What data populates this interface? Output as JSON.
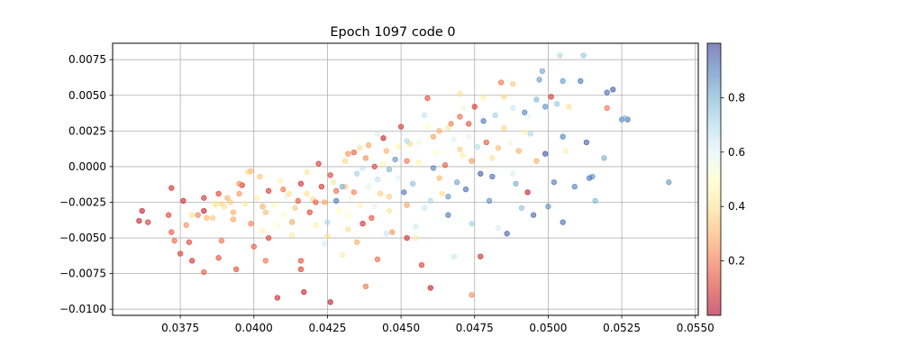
{
  "chart_data": {
    "type": "scatter",
    "title": "Epoch 1097 code 0",
    "xlabel": "",
    "ylabel": "",
    "xlim": [
      0.0352,
      0.0551
    ],
    "ylim": [
      -0.01043,
      0.00865
    ],
    "grid": true,
    "x_ticks": [
      0.0375,
      0.04,
      0.0425,
      0.045,
      0.0475,
      0.05,
      0.0525,
      0.055
    ],
    "x_tick_labels": [
      "0.0375",
      "0.0400",
      "0.0425",
      "0.0450",
      "0.0475",
      "0.0500",
      "0.0525",
      "0.0550"
    ],
    "y_ticks": [
      -0.01,
      -0.0075,
      -0.005,
      -0.0025,
      0.0,
      0.0025,
      0.005,
      0.0075
    ],
    "y_tick_labels": [
      "−0.0100",
      "−0.0075",
      "−0.0050",
      "−0.0025",
      "0.0000",
      "0.0025",
      "0.0050",
      "0.0075"
    ],
    "colorbar": {
      "colormap": "RdYlBu",
      "alpha": 0.6,
      "range": [
        0,
        1
      ],
      "ticks": [
        0.2,
        0.4,
        0.6,
        0.8
      ],
      "tick_labels": [
        "0.2",
        "0.4",
        "0.6",
        "0.8"
      ],
      "stops": [
        "#a50026",
        "#d73027",
        "#f46d43",
        "#fdae61",
        "#fee090",
        "#ffffbf",
        "#e0f3f8",
        "#abd9e9",
        "#74add1",
        "#4575b4",
        "#313695"
      ]
    },
    "points": [
      [
        0.0362,
        -0.0031,
        0.05
      ],
      [
        0.0361,
        -0.0038,
        0.06
      ],
      [
        0.0364,
        -0.0039,
        0.1
      ],
      [
        0.0372,
        -0.0015,
        0.08
      ],
      [
        0.0371,
        -0.0034,
        0.12
      ],
      [
        0.0376,
        -0.0024,
        0.07
      ],
      [
        0.0372,
        -0.0046,
        0.15
      ],
      [
        0.0373,
        -0.0052,
        0.18
      ],
      [
        0.0375,
        -0.0061,
        0.11
      ],
      [
        0.0378,
        -0.0053,
        0.13
      ],
      [
        0.0379,
        -0.0066,
        0.09
      ],
      [
        0.0377,
        -0.0041,
        0.25
      ],
      [
        0.0381,
        -0.0034,
        0.22
      ],
      [
        0.0383,
        -0.0031,
        0.05
      ],
      [
        0.0383,
        -0.0022,
        0.09
      ],
      [
        0.0384,
        -0.0036,
        0.32
      ],
      [
        0.0386,
        -0.0036,
        0.35
      ],
      [
        0.0383,
        -0.0074,
        0.16
      ],
      [
        0.0388,
        -0.0019,
        0.12
      ],
      [
        0.0389,
        -0.0026,
        0.38
      ],
      [
        0.039,
        -0.0028,
        0.4
      ],
      [
        0.0388,
        -0.0064,
        0.14
      ],
      [
        0.0389,
        -0.0052,
        0.2
      ],
      [
        0.0391,
        -0.0022,
        0.3
      ],
      [
        0.0392,
        -0.0025,
        0.36
      ],
      [
        0.0393,
        -0.0037,
        0.28
      ],
      [
        0.0394,
        -0.0072,
        0.14
      ],
      [
        0.0395,
        -0.0019,
        0.26
      ],
      [
        0.0396,
        -0.0013,
        0.1
      ],
      [
        0.0397,
        -0.0026,
        0.42
      ],
      [
        0.0398,
        -0.0004,
        0.38
      ],
      [
        0.0399,
        -0.004,
        0.22
      ],
      [
        0.0401,
        -0.0022,
        0.45
      ],
      [
        0.0402,
        -0.0007,
        0.34
      ],
      [
        0.04,
        -0.0056,
        0.16
      ],
      [
        0.0403,
        -0.0028,
        0.3
      ],
      [
        0.0404,
        -0.0032,
        0.33
      ],
      [
        0.0404,
        -0.0066,
        0.2
      ],
      [
        0.0405,
        -0.0017,
        0.1
      ],
      [
        0.0405,
        -0.005,
        0.12
      ],
      [
        0.0407,
        -0.0027,
        0.48
      ],
      [
        0.0408,
        -0.0041,
        0.52
      ],
      [
        0.0409,
        -0.001,
        0.46
      ],
      [
        0.041,
        -0.0016,
        0.2
      ],
      [
        0.0408,
        -0.0092,
        0.07
      ],
      [
        0.0411,
        -0.0021,
        0.6
      ],
      [
        0.0412,
        -0.0019,
        0.4
      ],
      [
        0.0413,
        -0.0038,
        0.62
      ],
      [
        0.0414,
        -0.0029,
        0.35
      ],
      [
        0.0413,
        -0.0048,
        0.44
      ],
      [
        0.0415,
        -0.0024,
        0.15
      ],
      [
        0.0416,
        -0.0012,
        0.08
      ],
      [
        0.0416,
        -0.0066,
        0.14
      ],
      [
        0.0416,
        -0.0072,
        0.11
      ],
      [
        0.0417,
        -0.0088,
        0.06
      ],
      [
        0.0418,
        -0.0019,
        0.4
      ],
      [
        0.0419,
        -0.0032,
        0.12
      ],
      [
        0.042,
        -0.0023,
        0.38
      ],
      [
        0.0421,
        -0.0041,
        0.45
      ],
      [
        0.0422,
        0.0002,
        0.1
      ],
      [
        0.0423,
        -0.0014,
        0.09
      ],
      [
        0.0424,
        -0.0025,
        0.28
      ],
      [
        0.0425,
        -0.0039,
        0.7
      ],
      [
        0.0424,
        -0.0054,
        0.62
      ],
      [
        0.0426,
        -0.0095,
        0.05
      ],
      [
        0.0427,
        -0.0011,
        0.42
      ],
      [
        0.0428,
        -0.0017,
        0.18
      ],
      [
        0.0428,
        -0.0024,
        0.9
      ],
      [
        0.0429,
        -0.0031,
        0.5
      ],
      [
        0.043,
        -0.0062,
        0.44
      ],
      [
        0.0431,
        0.0004,
        0.38
      ],
      [
        0.0432,
        0.0009,
        0.25
      ],
      [
        0.0431,
        -0.0014,
        0.35
      ],
      [
        0.0433,
        -0.0022,
        0.55
      ],
      [
        0.0432,
        -0.0044,
        0.4
      ],
      [
        0.0434,
        0.001,
        0.16
      ],
      [
        0.0435,
        -0.0005,
        0.72
      ],
      [
        0.0436,
        -0.0027,
        0.47
      ],
      [
        0.0435,
        -0.0053,
        0.3
      ],
      [
        0.0437,
        -0.004,
        0.08
      ],
      [
        0.0438,
        0.0006,
        0.24
      ],
      [
        0.0439,
        0.0015,
        0.28
      ],
      [
        0.0439,
        -0.0014,
        0.58
      ],
      [
        0.044,
        -0.0036,
        0.14
      ],
      [
        0.0438,
        -0.0084,
        0.2
      ],
      [
        0.0441,
        0.0,
        0.12
      ],
      [
        0.0442,
        -0.0009,
        0.66
      ],
      [
        0.0443,
        -0.0019,
        0.36
      ],
      [
        0.0442,
        -0.0065,
        0.18
      ],
      [
        0.0444,
        0.002,
        0.06
      ],
      [
        0.0445,
        0.0011,
        0.3
      ],
      [
        0.0446,
        -0.0002,
        0.78
      ],
      [
        0.0446,
        -0.0031,
        0.42
      ],
      [
        0.0447,
        -0.0046,
        0.26
      ],
      [
        0.0448,
        0.0005,
        0.85
      ],
      [
        0.0449,
        -0.0008,
        0.6
      ],
      [
        0.045,
        0.0028,
        0.1
      ],
      [
        0.0451,
        -0.0018,
        0.9
      ],
      [
        0.0452,
        0.0004,
        0.2
      ],
      [
        0.0452,
        -0.005,
        0.08
      ],
      [
        0.0453,
        0.0016,
        0.38
      ],
      [
        0.0454,
        -0.0012,
        0.76
      ],
      [
        0.0455,
        -0.0042,
        0.64
      ],
      [
        0.0456,
        0.0003,
        0.45
      ],
      [
        0.0457,
        -0.0069,
        0.12
      ],
      [
        0.0458,
        0.0036,
        0.66
      ],
      [
        0.0459,
        0.0048,
        0.14
      ],
      [
        0.046,
        -0.0024,
        0.7
      ],
      [
        0.0461,
        -0.0001,
        0.88
      ],
      [
        0.046,
        -0.0085,
        0.05
      ],
      [
        0.0462,
        0.001,
        0.5
      ],
      [
        0.0463,
        0.0025,
        0.3
      ],
      [
        0.0464,
        -0.0019,
        0.4
      ],
      [
        0.0465,
        0.0001,
        0.16
      ],
      [
        0.0466,
        -0.0034,
        0.9
      ],
      [
        0.0467,
        0.003,
        0.22
      ],
      [
        0.0468,
        0.0019,
        0.6
      ],
      [
        0.0468,
        -0.0063,
        0.65
      ],
      [
        0.0469,
        -0.0011,
        0.82
      ],
      [
        0.047,
        0.0035,
        0.18
      ],
      [
        0.0471,
        0.0008,
        0.44
      ],
      [
        0.0472,
        -0.0016,
        0.92
      ],
      [
        0.0473,
        0.0021,
        0.58
      ],
      [
        0.0474,
        -0.004,
        0.72
      ],
      [
        0.0474,
        -0.009,
        0.24
      ],
      [
        0.0475,
        0.0042,
        0.1
      ],
      [
        0.0476,
        0.0014,
        0.68
      ],
      [
        0.0477,
        -0.0005,
        0.95
      ],
      [
        0.0477,
        -0.0063,
        0.08
      ],
      [
        0.0478,
        0.0032,
        0.9
      ],
      [
        0.0479,
        0.0017,
        0.15
      ],
      [
        0.048,
        -0.0024,
        0.86
      ],
      [
        0.0481,
        0.0006,
        0.4
      ],
      [
        0.0482,
        0.0036,
        0.72
      ],
      [
        0.0483,
        -0.0043,
        0.62
      ],
      [
        0.0484,
        0.0059,
        0.2
      ],
      [
        0.0485,
        0.0027,
        0.38
      ],
      [
        0.0486,
        -0.0047,
        0.94
      ],
      [
        0.0487,
        0.0017,
        0.55
      ],
      [
        0.0488,
        0.0058,
        0.35
      ],
      [
        0.0489,
        -0.0012,
        0.8
      ],
      [
        0.049,
        0.0011,
        0.3
      ],
      [
        0.0491,
        -0.0029,
        0.76
      ],
      [
        0.0492,
        0.0038,
        0.88
      ],
      [
        0.0493,
        -0.0018,
        0.06
      ],
      [
        0.0494,
        0.0023,
        0.7
      ],
      [
        0.0495,
        -0.0034,
        0.92
      ],
      [
        0.0496,
        0.0047,
        0.78
      ],
      [
        0.0497,
        0.0061,
        0.84
      ],
      [
        0.0498,
        0.0067,
        0.82
      ],
      [
        0.0499,
        0.0009,
        0.96
      ],
      [
        0.05,
        -0.0028,
        0.86
      ],
      [
        0.0501,
        0.0049,
        0.1
      ],
      [
        0.0502,
        -0.0011,
        0.9
      ],
      [
        0.0503,
        0.0044,
        0.74
      ],
      [
        0.0504,
        0.0078,
        0.7
      ],
      [
        0.0505,
        0.0021,
        0.88
      ],
      [
        0.0505,
        -0.0039,
        0.92
      ],
      [
        0.0507,
        0.0042,
        0.4
      ],
      [
        0.0509,
        -0.0014,
        0.88
      ],
      [
        0.0511,
        0.006,
        0.9
      ],
      [
        0.0512,
        0.0078,
        0.74
      ],
      [
        0.0513,
        0.0017,
        0.94
      ],
      [
        0.0515,
        -0.0007,
        0.86
      ],
      [
        0.0516,
        -0.0024,
        0.78
      ],
      [
        0.0519,
        0.0006,
        0.8
      ],
      [
        0.052,
        0.0052,
        0.92
      ],
      [
        0.0522,
        0.0054,
        0.95
      ],
      [
        0.0525,
        0.0033,
        0.86
      ],
      [
        0.0527,
        0.0033,
        0.9
      ],
      [
        0.0541,
        -0.0011,
        0.84
      ],
      [
        0.0526,
        0.0034,
        0.78
      ],
      [
        0.052,
        0.0041,
        0.2
      ],
      [
        0.0485,
        0.0049,
        0.38
      ],
      [
        0.0478,
        0.0048,
        0.45
      ],
      [
        0.047,
        0.0051,
        0.4
      ],
      [
        0.0456,
        0.0017,
        0.55
      ],
      [
        0.0444,
        0.0002,
        0.48
      ],
      [
        0.0437,
        -0.0001,
        0.66
      ],
      [
        0.0426,
        -0.0006,
        0.12
      ],
      [
        0.0418,
        -0.0004,
        0.42
      ],
      [
        0.041,
        -0.0034,
        0.52
      ],
      [
        0.0399,
        -0.0003,
        0.32
      ],
      [
        0.0393,
        -0.0032,
        0.3
      ],
      [
        0.0387,
        -0.0027,
        0.44
      ],
      [
        0.0434,
        -0.0018,
        0.22
      ],
      [
        0.0446,
        -0.0021,
        0.36
      ],
      [
        0.0458,
        -0.0029,
        0.64
      ],
      [
        0.0466,
        -0.0021,
        0.85
      ],
      [
        0.0474,
        0.0004,
        0.26
      ],
      [
        0.0488,
        -0.0005,
        0.62
      ],
      [
        0.0496,
        0.0004,
        0.3
      ],
      [
        0.0506,
        0.0011,
        0.45
      ],
      [
        0.0514,
        -0.0008,
        0.9
      ],
      [
        0.0493,
        0.0035,
        0.58
      ],
      [
        0.0481,
        -0.0007,
        0.92
      ],
      [
        0.0463,
        -0.0008,
        0.32
      ],
      [
        0.0452,
        -0.0027,
        0.28
      ],
      [
        0.0441,
        -0.0028,
        0.58
      ],
      [
        0.043,
        -0.0014,
        0.8
      ],
      [
        0.0421,
        -0.0025,
        0.16
      ],
      [
        0.0413,
        -0.0039,
        0.3
      ],
      [
        0.0403,
        -0.0045,
        0.46
      ],
      [
        0.0395,
        -0.0012,
        0.24
      ],
      [
        0.0387,
        -0.0026,
        0.42
      ],
      [
        0.0379,
        -0.0034,
        0.4
      ],
      [
        0.0455,
        -0.005,
        0.44
      ],
      [
        0.0445,
        -0.0047,
        0.65
      ],
      [
        0.0432,
        -0.0034,
        0.5
      ],
      [
        0.0425,
        -0.0049,
        0.4
      ],
      [
        0.0466,
        0.0027,
        0.42
      ],
      [
        0.047,
        0.0012,
        0.36
      ],
      [
        0.0459,
        0.0028,
        0.5
      ],
      [
        0.0449,
        0.0014,
        0.46
      ],
      [
        0.0436,
        0.0013,
        0.4
      ],
      [
        0.0442,
        0.0023,
        0.62
      ],
      [
        0.0452,
        0.0018,
        0.7
      ],
      [
        0.0461,
        0.0021,
        0.28
      ],
      [
        0.0473,
        0.003,
        0.14
      ],
      [
        0.0483,
        0.0013,
        0.32
      ],
      [
        0.0492,
        0.0024,
        0.46
      ],
      [
        0.0499,
        0.0042,
        0.86
      ],
      [
        0.0505,
        0.006,
        0.84
      ],
      [
        0.0488,
        0.0041,
        0.64
      ],
      [
        0.0471,
        0.0041,
        0.56
      ]
    ]
  }
}
